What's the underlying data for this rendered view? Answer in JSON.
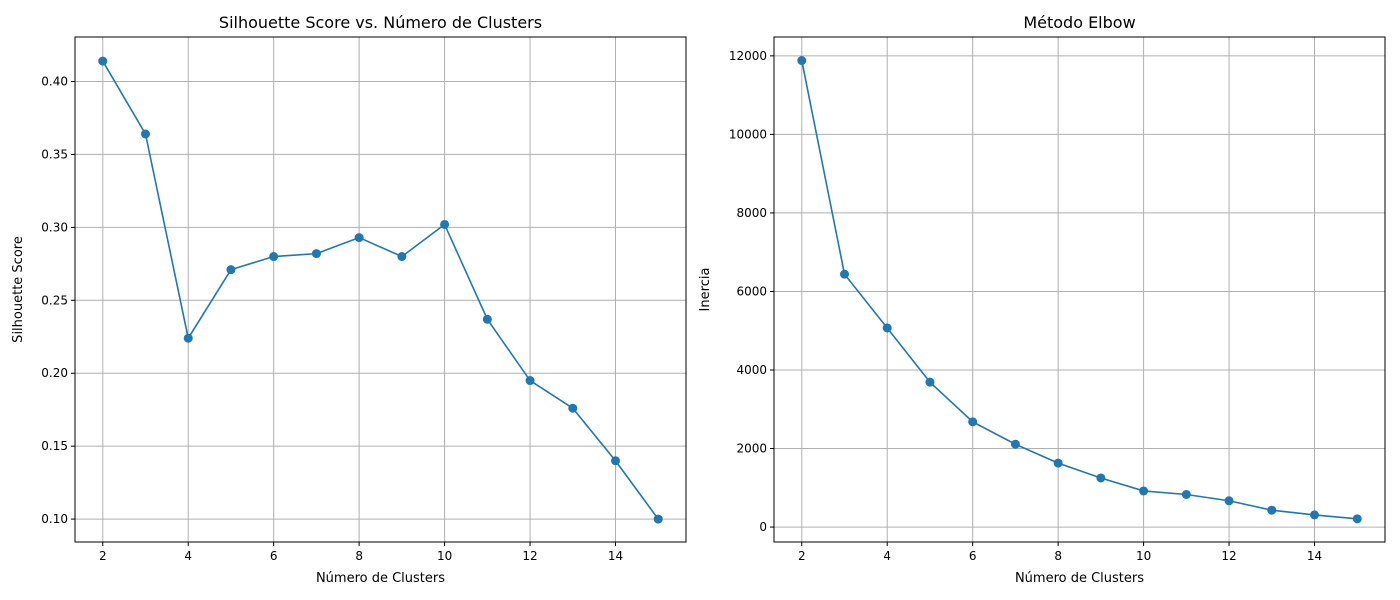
{
  "chart_data": [
    {
      "type": "line",
      "title": "Silhouette Score vs. Número de Clusters",
      "xlabel": "Número de Clusters",
      "ylabel": "Silhouette Score",
      "xlim": [
        1.35,
        15.65
      ],
      "ylim": [
        0.0843,
        0.4305
      ],
      "xticks": [
        2,
        4,
        6,
        8,
        10,
        12,
        14
      ],
      "yticks": [
        0.1,
        0.15,
        0.2,
        0.25,
        0.3,
        0.35,
        0.4
      ],
      "ytick_labels": [
        "0.10",
        "0.15",
        "0.20",
        "0.25",
        "0.30",
        "0.35",
        "0.40"
      ],
      "grid": true,
      "marker": "circle",
      "color": "#1f77b4",
      "x": [
        2,
        3,
        4,
        5,
        6,
        7,
        8,
        9,
        10,
        11,
        12,
        13,
        14,
        15
      ],
      "y": [
        0.414,
        0.364,
        0.224,
        0.271,
        0.28,
        0.282,
        0.293,
        0.28,
        0.302,
        0.237,
        0.195,
        0.176,
        0.14,
        0.1
      ]
    },
    {
      "type": "line",
      "title": "Método Elbow",
      "xlabel": "Número de Clusters",
      "ylabel": "Inercia",
      "xlim": [
        1.35,
        15.65
      ],
      "ylim": [
        -380,
        12480
      ],
      "xticks": [
        2,
        4,
        6,
        8,
        10,
        12,
        14
      ],
      "yticks": [
        0,
        2000,
        4000,
        6000,
        8000,
        10000,
        12000
      ],
      "ytick_labels": [
        "0",
        "2000",
        "4000",
        "6000",
        "8000",
        "10000",
        "12000"
      ],
      "grid": true,
      "marker": "circle",
      "color": "#1f77b4",
      "x": [
        2,
        3,
        4,
        5,
        6,
        7,
        8,
        9,
        10,
        11,
        12,
        13,
        14,
        15
      ],
      "y": [
        11880,
        6440,
        5070,
        3690,
        2680,
        2110,
        1630,
        1250,
        920,
        830,
        670,
        430,
        310,
        210
      ]
    }
  ]
}
